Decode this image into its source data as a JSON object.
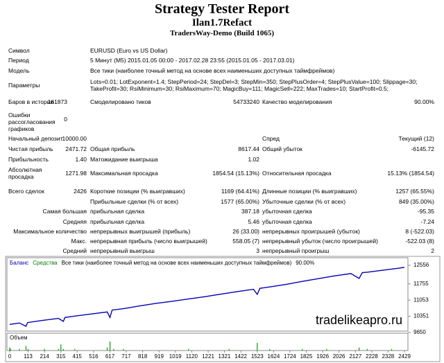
{
  "header": {
    "title": "Strategy Tester Report",
    "expert": "Ilan1.7Refact",
    "server": "TradersWay-Demo (Build 1065)"
  },
  "summary": {
    "symbol": {
      "label": "Символ",
      "value": "EURUSD (Euro vs US Dollar)"
    },
    "period": {
      "label": "Период",
      "value": "5 Минут (M5) 2015.01.05 00:00 - 2017.02.28 23:55 (2015.01.05 - 2017.03.01)"
    },
    "model": {
      "label": "Модель",
      "value": "Все тики (наиболее точный метод на основе всех наименьших доступных таймфреймов)"
    },
    "parameters": {
      "label": "Параметры",
      "lines": [
        "Lots=0.01; LotExponent=1.4; StepPeriod=24; StepDel=3; StepMin=350; StepPlusOrder=4; StepPlusValue=100; Slippage=30;",
        "TakeProfit=30; RsiMinimum=30; RsiMaximum=70; MagicBuy=111; MagicSell=222; MaxTrades=10; StartProfit=0.5;"
      ]
    },
    "bars": {
      "label": "Баров в истории",
      "value": "161873"
    },
    "ticks": {
      "label": "Смоделировано тиков",
      "value": "54733240"
    },
    "quality": {
      "label": "Качество моделирования",
      "value": "90.00%"
    },
    "errors": {
      "label": "Ошибки рассогласования графиков",
      "value": "0"
    }
  },
  "stats": [
    {
      "c1": "Начальный депозит",
      "v1": "10000.00",
      "c3": "Спред",
      "v3": "Текущий (12)"
    },
    {
      "c1": "Чистая прибыль",
      "v1": "2471.72",
      "c2": "Общая прибыль",
      "v2": "8617.44",
      "c3": "Общий убыток",
      "v3": "-6145.72"
    },
    {
      "c1": "Прибыльность",
      "v1": "1.40",
      "c2": "Матожидание выигрыша",
      "v2": "1.02"
    },
    {
      "c1": "Абсолютная просадка",
      "v1": "1271.98",
      "c2": "Максимальная просадка",
      "v2": "1854.54 (15.13%)",
      "c3": "Относительная просадка",
      "v3": "15.13% (1854.54)"
    },
    {
      "c1": "Всего сделок",
      "v1": "2426",
      "c2": "Короткие позиции (% выигравших)",
      "v2": "1169 (64.41%)",
      "c3": "Длинные позиции (% выигравших)",
      "v3": "1257 (65.55%)"
    },
    {
      "c2": "Прибыльные сделки (% от всех)",
      "v2": "1577 (65.00%)",
      "c3": "Убыточные сделки (% от всех)",
      "v3": "849 (35.00%)"
    },
    {
      "c1": "Самая большая",
      "c2": "прибыльная сделка",
      "v2": "387.18",
      "c3": "убыточная сделка",
      "v3": "-95.35"
    },
    {
      "c1": "Средняя",
      "c2": "прибыльная сделка",
      "v2": "5.46",
      "c3": "убыточная сделка",
      "v3": "-7.24"
    },
    {
      "c1": "Максимальное количество",
      "c2": "непрерывных выигрышей (прибыль)",
      "v2": "26 (33.00)",
      "c3": "непрерывных проигрышей (убыток)",
      "v3": "8 (-522.03)"
    },
    {
      "c1": "Макс.",
      "c2": "непрерывная прибыль (число выигрышей)",
      "v2": "558.05 (7)",
      "c3": "непрерывный убыток (число проигрышей)",
      "v3": "-522.03 (8)"
    },
    {
      "c1": "Средний",
      "c2": "непрерывный выигрыш",
      "v2": "3",
      "c3": "непрерывный проигрыш",
      "v3": "2"
    }
  ],
  "chart_data": {
    "type": "line",
    "legend": [
      "Баланс",
      "Средства",
      "Все тики (наиболее точный метод на основе всех наименьших доступных таймфреймов)",
      "90.00%"
    ],
    "legend_colors": [
      "#0000b4",
      "#008000",
      "#000000",
      "#000000"
    ],
    "x": [
      0,
      60,
      100,
      110,
      200,
      300,
      330,
      340,
      400,
      500,
      600,
      617,
      630,
      700,
      800,
      900,
      1000,
      1100,
      1200,
      1300,
      1400,
      1500,
      1523,
      1540,
      1600,
      1700,
      1800,
      1900,
      2000,
      2100,
      2150,
      2170,
      2200,
      2300,
      2400,
      2429
    ],
    "values": [
      10000,
      10060,
      9920,
      10080,
      10170,
      10260,
      10130,
      10300,
      10360,
      10450,
      10540,
      10300,
      10620,
      10680,
      10800,
      10910,
      11000,
      11100,
      11200,
      11310,
      11420,
      11520,
      11300,
      11560,
      11620,
      11730,
      11860,
      11980,
      12100,
      12200,
      11990,
      12240,
      12260,
      12350,
      12440,
      12471.72
    ],
    "color": "#0000b4",
    "xlim": [
      0,
      2429
    ],
    "xticks": [
      0,
      113,
      214,
      315,
      415,
      516,
      617,
      717,
      818,
      919,
      1019,
      1120,
      1221,
      1321,
      1422,
      1523,
      1624,
      1724,
      1825,
      1926,
      2026,
      2127,
      2228,
      2328,
      2429
    ],
    "ylim": [
      9650,
      12556
    ],
    "yticks": [
      12556,
      11755,
      11053,
      10351,
      9650
    ],
    "watermark": "tradelikeapro.ru",
    "volume": {
      "label": "Объем",
      "color": "#00a000",
      "ylim": [
        0,
        10
      ],
      "x": [
        0,
        5,
        60,
        100,
        113,
        214,
        300,
        315,
        330,
        400,
        600,
        617,
        640,
        700,
        1100,
        1350,
        1523,
        1600,
        1800,
        1950,
        2150,
        2200,
        2350
      ],
      "values": [
        2,
        1,
        1,
        3,
        1,
        1,
        1,
        4,
        1,
        1,
        2,
        6,
        1,
        1,
        1,
        1,
        5,
        1,
        1,
        1,
        2,
        1,
        1
      ]
    }
  }
}
